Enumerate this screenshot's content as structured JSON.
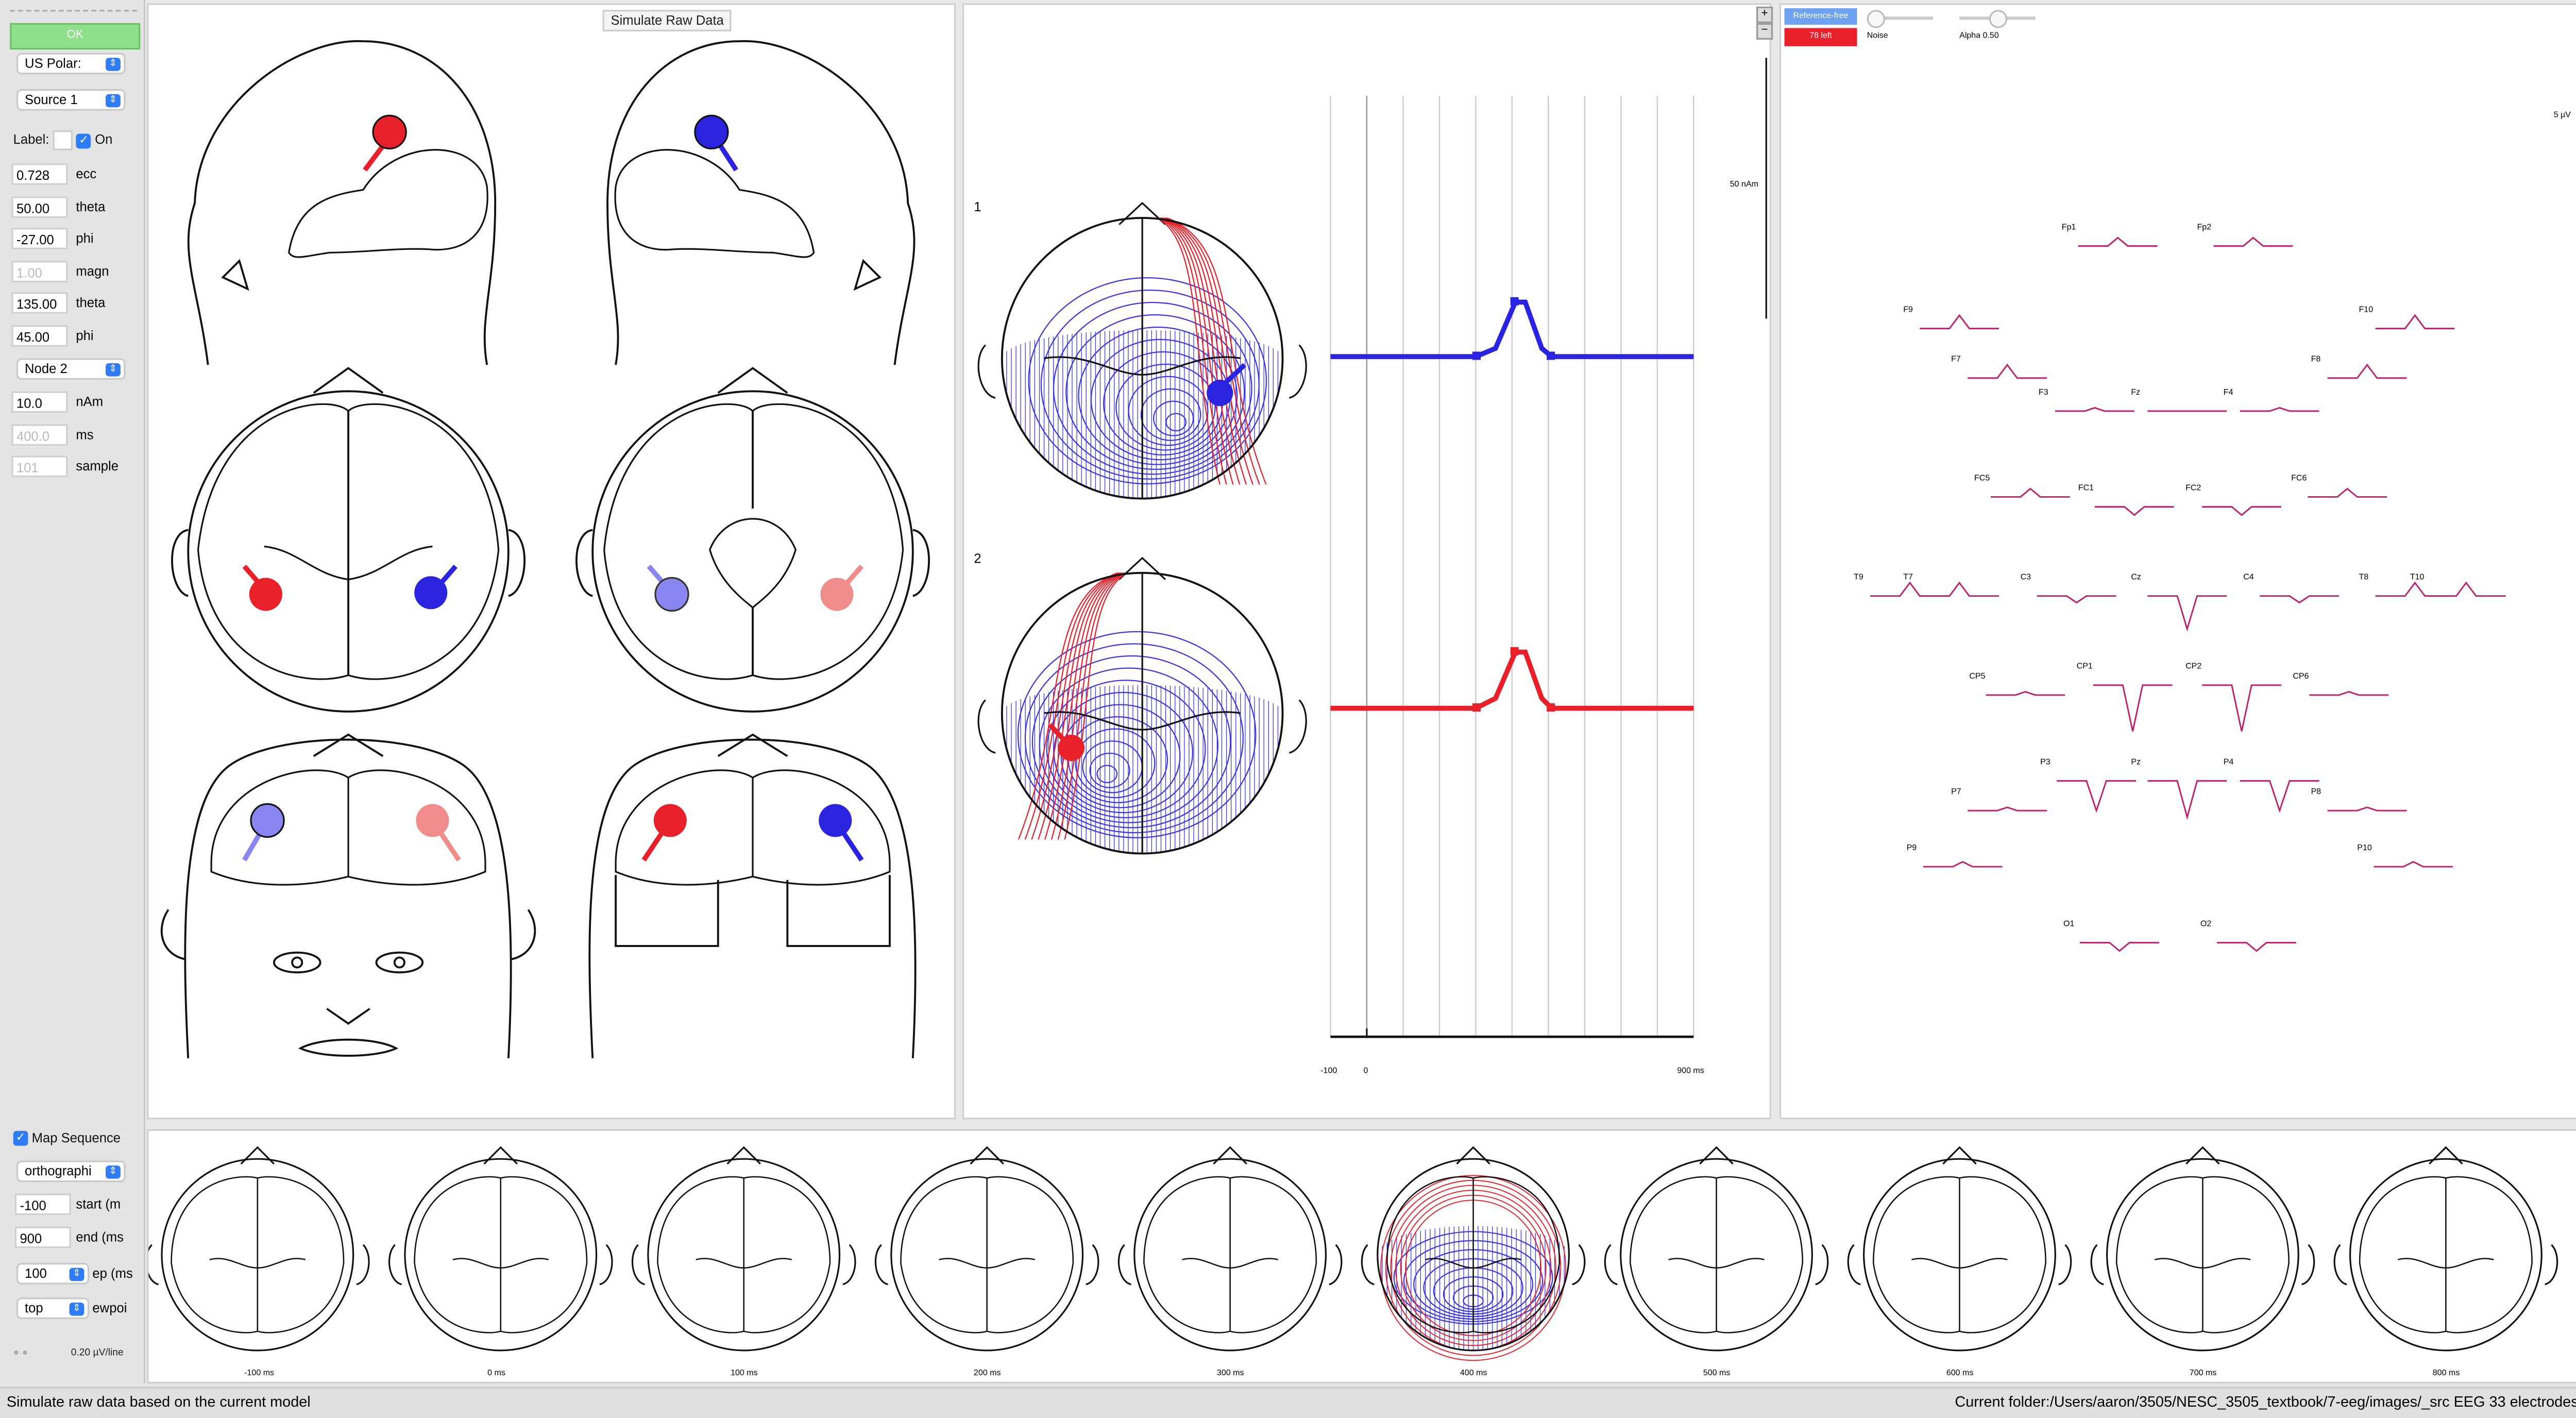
{
  "tooltip": "Simulate Raw Data",
  "sidebar": {
    "ok_label": "OK",
    "coord_select": "US Polar:",
    "source_select": "Source 1",
    "label_text": "Label:",
    "on_label": "On",
    "fields": [
      {
        "value": "0.728",
        "label": "ecc",
        "dim": false
      },
      {
        "value": "50.00",
        "label": "theta",
        "dim": false
      },
      {
        "value": "-27.00",
        "label": "phi",
        "dim": false
      },
      {
        "value": "1.00",
        "label": "magn",
        "dim": true
      },
      {
        "value": "135.00",
        "label": "theta",
        "dim": false
      },
      {
        "value": "45.00",
        "label": "phi",
        "dim": false
      }
    ],
    "node_select": "Node 2",
    "fields2": [
      {
        "value": "10.0",
        "label": "nAm",
        "dim": false
      },
      {
        "value": "400.0",
        "label": "ms",
        "dim": true
      },
      {
        "value": "101",
        "label": "sample",
        "dim": true
      }
    ],
    "map_sequence_label": "Map Sequence",
    "projection_select": "orthographi",
    "seq_fields": [
      {
        "value": "-100",
        "label": "start (m"
      },
      {
        "value": "900",
        "label": "end (ms"
      }
    ],
    "step_select": "100",
    "step_label": "ep (ms",
    "view_select": "top",
    "view_label": "ewpoi",
    "scale_text": "0.20 µV/line"
  },
  "waveforms": {
    "labels": [
      "1",
      "2"
    ],
    "scale": "50 nAm",
    "x_left": "-100",
    "x_zero": "0",
    "x_right": "900 ms"
  },
  "eeg": {
    "ref_button": "Reference-free",
    "ref_button2": "78 left",
    "noise_label": "Noise",
    "alpha_label": "Alpha 0.50",
    "scale": "5 µV",
    "electrodes": [
      "Fp1",
      "Fp2",
      "F9",
      "F10",
      "F7",
      "F8",
      "F3",
      "Fz",
      "F4",
      "FC5",
      "FC1",
      "FC2",
      "FC6",
      "T9",
      "T7",
      "C3",
      "Cz",
      "C4",
      "T8",
      "T10",
      "CP5",
      "CP1",
      "CP2",
      "CP6",
      "P3",
      "Pz",
      "P4",
      "P7",
      "P8",
      "P9",
      "P10",
      "O1",
      "O2"
    ]
  },
  "sequence_times": [
    "-100 ms",
    "0 ms",
    "100 ms",
    "200 ms",
    "300 ms",
    "400 ms",
    "500 ms",
    "600 ms",
    "700 ms",
    "800 ms"
  ],
  "status": {
    "left": "Simulate raw data based on the current model",
    "right": "Current folder:/Users/aaron/3505/NESC_3505_textbook/7-eeg/images/_src  EEG  33 electrodes"
  },
  "colors": {
    "red": "#e8202a",
    "blue": "#2a24e0",
    "ok": "#8fe08a",
    "accent": "#2f7cf6"
  }
}
